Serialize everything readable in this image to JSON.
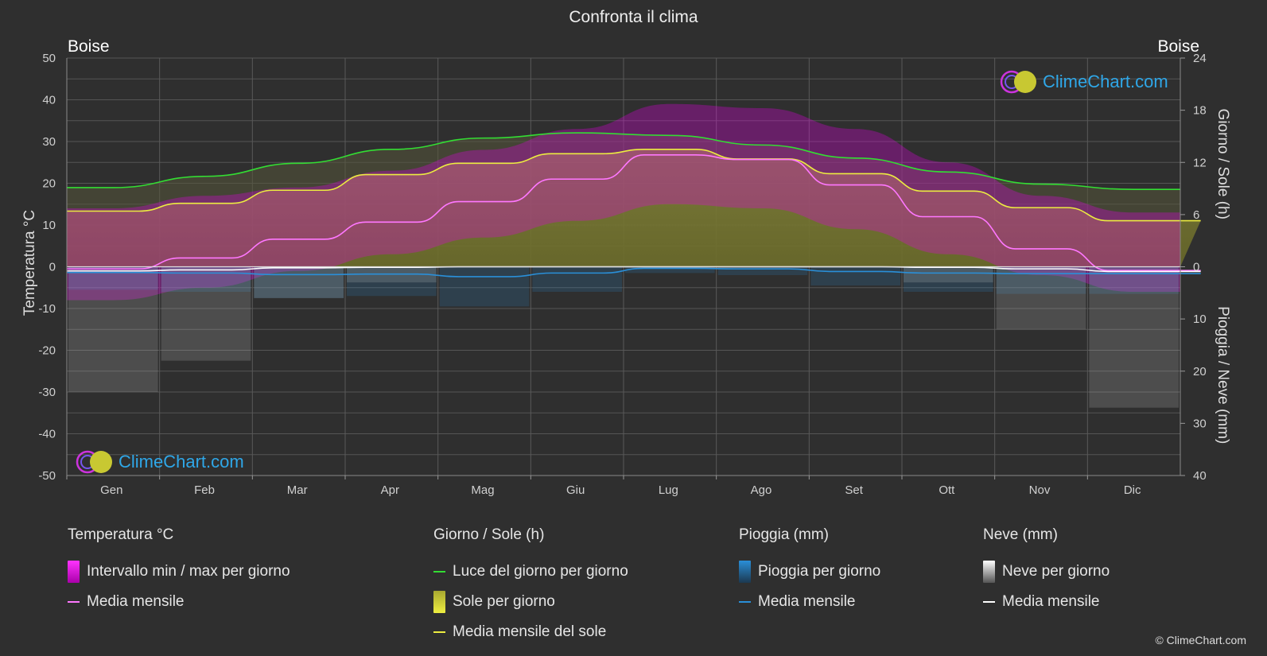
{
  "title": "Confronta il clima",
  "location_left": "Boise",
  "location_right": "Boise",
  "watermark": "ClimeChart.com",
  "copyright": "© ClimeChart.com",
  "colors": {
    "background": "#2f2f2f",
    "temp_range": "#e000e0",
    "temp_mean": "#ff77ff",
    "daylight": "#33dd33",
    "sunshine": "#c8c832",
    "sunshine_mean": "#ecec40",
    "rain": "#2a8fd8",
    "rain_mean": "#2a8fd8",
    "snow": "#bbbbbb",
    "snow_mean": "#ffffff",
    "watermark_text": "#2fa7e8"
  },
  "legend": {
    "temp": {
      "title": "Temperatura °C",
      "items": [
        "Intervallo min / max per giorno",
        "Media mensile"
      ]
    },
    "sun": {
      "title": "Giorno / Sole (h)",
      "items": [
        "Luce del giorno per giorno",
        "Sole per giorno",
        "Media mensile del sole"
      ]
    },
    "rain": {
      "title": "Pioggia (mm)",
      "items": [
        "Pioggia per giorno",
        "Media mensile"
      ]
    },
    "snow": {
      "title": "Neve (mm)",
      "items": [
        "Neve per giorno",
        "Media mensile"
      ]
    }
  },
  "chart_data": {
    "type": "line",
    "months": [
      "Gen",
      "Feb",
      "Mar",
      "Apr",
      "Mag",
      "Giu",
      "Lug",
      "Ago",
      "Set",
      "Ott",
      "Nov",
      "Dic"
    ],
    "axes": {
      "left": {
        "label": "Temperatura °C",
        "ylim": [
          -50,
          50
        ],
        "ticks": [
          50,
          40,
          30,
          20,
          10,
          0,
          -10,
          -20,
          -30,
          -40,
          -50
        ]
      },
      "right_top": {
        "label": "Giorno / Sole (h)",
        "ylim": [
          0,
          24
        ],
        "ticks": [
          24,
          18,
          12,
          6,
          0
        ]
      },
      "right_bottom": {
        "label": "Pioggia / Neve (mm)",
        "ylim": [
          0,
          40
        ],
        "ticks": [
          0,
          10,
          20,
          30,
          40
        ]
      }
    },
    "grid": true,
    "series": [
      {
        "name": "Luce del giorno per giorno",
        "axis": "right_top",
        "values": [
          9.1,
          10.4,
          11.9,
          13.5,
          14.8,
          15.4,
          15.1,
          14.0,
          12.5,
          10.9,
          9.5,
          8.9
        ]
      },
      {
        "name": "Media mensile del sole",
        "axis": "right_top",
        "values": [
          6.4,
          7.3,
          8.8,
          10.6,
          11.9,
          13.0,
          13.5,
          12.4,
          10.7,
          8.7,
          6.8,
          5.3
        ]
      },
      {
        "name": "Media mensile",
        "kind": "temperature",
        "axis": "left",
        "values": [
          -0.5,
          2.1,
          6.6,
          10.7,
          15.6,
          21.0,
          26.8,
          25.7,
          19.6,
          12.0,
          4.3,
          -0.9
        ]
      },
      {
        "name": "Intervallo min / max per giorno",
        "axis": "left",
        "min": [
          -8,
          -5,
          -1,
          3,
          7,
          11,
          15,
          14,
          9,
          3,
          -2,
          -6
        ],
        "max": [
          14,
          17,
          19,
          23,
          28,
          33,
          39,
          38,
          33,
          25,
          17,
          13
        ]
      },
      {
        "name": "Media mensile",
        "kind": "rain",
        "axis": "right_bottom",
        "values": [
          1.1,
          1.2,
          1.5,
          1.4,
          1.9,
          1.2,
          0.3,
          0.4,
          0.9,
          1.2,
          1.3,
          1.3
        ]
      },
      {
        "name": "Media mensile",
        "kind": "snow",
        "axis": "right_bottom",
        "values": [
          0.8,
          0.6,
          0.2,
          0.1,
          0.0,
          0.0,
          0.0,
          0.0,
          0.0,
          0.1,
          0.4,
          0.9
        ]
      }
    ]
  }
}
